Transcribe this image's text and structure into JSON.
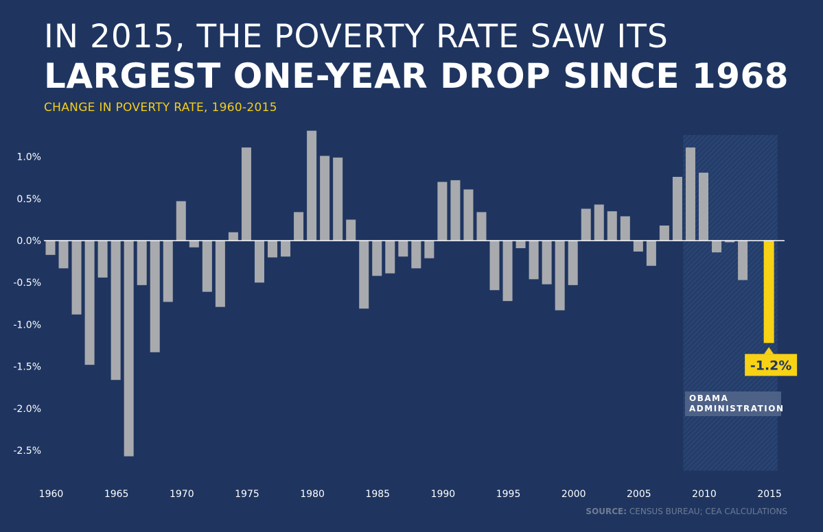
{
  "header": {
    "title_line1": "IN 2015, THE POVERTY RATE SAW ITS",
    "title_line2": "LARGEST ONE-YEAR DROP SINCE 1968",
    "subtitle": "CHANGE IN POVERTY RATE, 1960-2015"
  },
  "source": {
    "label": "SOURCE:",
    "text": " CENSUS BUREAU; CEA CALCULATIONS"
  },
  "colors": {
    "background": "#1f3560",
    "bar": "#a8aaae",
    "highlight": "#f7d215",
    "zero_line": "#ffffff",
    "shade": "#2a4573"
  },
  "chart_data": {
    "type": "bar",
    "title": "CHANGE IN POVERTY RATE, 1960-2015",
    "xlabel": "",
    "ylabel": "",
    "ylim": [
      -2.7,
      1.25
    ],
    "y_ticks": [
      1.0,
      0.5,
      0.0,
      -0.5,
      -1.0,
      -1.5,
      -2.0,
      -2.5
    ],
    "y_tick_labels": [
      "1.0%",
      "0.5%",
      "0.0%",
      "-0.5%",
      "-1.0%",
      "-1.5%",
      "-2.0%",
      "-2.5%"
    ],
    "x_ticks": [
      "1960",
      "1965",
      "1970",
      "1975",
      "1980",
      "1985",
      "1990",
      "1995",
      "2000",
      "2005",
      "2010",
      "2015"
    ],
    "categories": [
      1960,
      1961,
      1962,
      1963,
      1964,
      1965,
      1966,
      1967,
      1968,
      1969,
      1970,
      1971,
      1972,
      1973,
      1974,
      1975,
      1976,
      1977,
      1978,
      1979,
      1980,
      1981,
      1982,
      1983,
      1984,
      1985,
      1986,
      1987,
      1988,
      1989,
      1990,
      1991,
      1992,
      1993,
      1994,
      1995,
      1996,
      1997,
      1998,
      1999,
      2000,
      2001,
      2002,
      2003,
      2004,
      2005,
      2006,
      2007,
      2008,
      2009,
      2010,
      2011,
      2012,
      2013,
      2014,
      2015
    ],
    "values": [
      -0.17,
      -0.33,
      -0.88,
      -1.48,
      -0.44,
      -1.66,
      -2.57,
      -0.53,
      -1.33,
      -0.73,
      0.47,
      -0.08,
      -0.61,
      -0.79,
      0.1,
      1.11,
      -0.5,
      -0.2,
      -0.19,
      0.34,
      1.31,
      1.01,
      0.99,
      0.25,
      -0.81,
      -0.42,
      -0.39,
      -0.19,
      -0.33,
      -0.21,
      0.7,
      0.72,
      0.61,
      0.34,
      -0.59,
      -0.72,
      -0.09,
      -0.46,
      -0.52,
      -0.83,
      -0.53,
      0.38,
      0.43,
      0.35,
      0.29,
      -0.13,
      -0.3,
      0.18,
      0.76,
      1.11,
      0.81,
      -0.14,
      -0.02,
      -0.47,
      0,
      -1.22
    ],
    "highlight_year": 2015,
    "callout_label": "-1.2%",
    "shaded_region": {
      "from": 2009,
      "to": 2016,
      "label_line1": "OBAMA",
      "label_line2": "ADMINISTRATION"
    }
  }
}
